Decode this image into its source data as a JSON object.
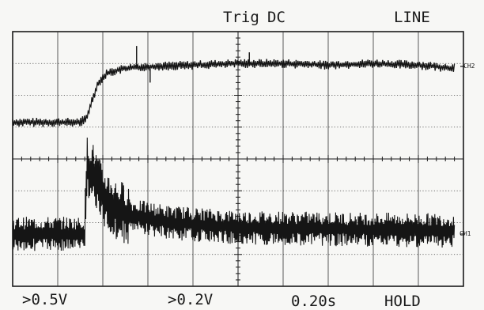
{
  "header": {
    "trigger_label": "Trig",
    "trigger_coupling": "DC",
    "trigger_source": "LINE"
  },
  "channels": {
    "ch2_label": "CH2",
    "ch1_label": "CH1"
  },
  "footer": {
    "ch1_scale": ">0.5V",
    "ch2_scale": ">0.2V",
    "timebase": "0.20s",
    "mode": "HOLD"
  },
  "chart_data": {
    "type": "line",
    "grid": true,
    "grid_divisions": {
      "x": 10,
      "y": 8
    },
    "x_units": "div",
    "y_units": "div",
    "xlim": [
      0,
      10
    ],
    "ylim": [
      -4,
      4
    ],
    "series": [
      {
        "name": "CH2",
        "points": [
          [
            0,
            1.15
          ],
          [
            1.5,
            1.15
          ],
          [
            1.65,
            1.3
          ],
          [
            1.75,
            1.8
          ],
          [
            1.9,
            2.4
          ],
          [
            2.1,
            2.7
          ],
          [
            2.5,
            2.85
          ],
          [
            3.0,
            2.9
          ],
          [
            4.0,
            2.95
          ],
          [
            5.0,
            3.0
          ],
          [
            6.0,
            3.0
          ],
          [
            7.0,
            2.95
          ],
          [
            8.0,
            3.0
          ],
          [
            9.0,
            2.95
          ],
          [
            9.8,
            2.85
          ]
        ],
        "noise_div": 0.12
      },
      {
        "name": "CH1",
        "points": [
          [
            0,
            -2.35
          ],
          [
            1.6,
            -2.35
          ],
          [
            1.65,
            -0.2
          ],
          [
            1.8,
            -0.5
          ],
          [
            2.0,
            -1.2
          ],
          [
            2.3,
            -1.6
          ],
          [
            2.7,
            -1.8
          ],
          [
            3.5,
            -2.0
          ],
          [
            5.0,
            -2.15
          ],
          [
            7.0,
            -2.2
          ],
          [
            9.8,
            -2.25
          ]
        ],
        "noise_div": 0.45
      }
    ]
  }
}
